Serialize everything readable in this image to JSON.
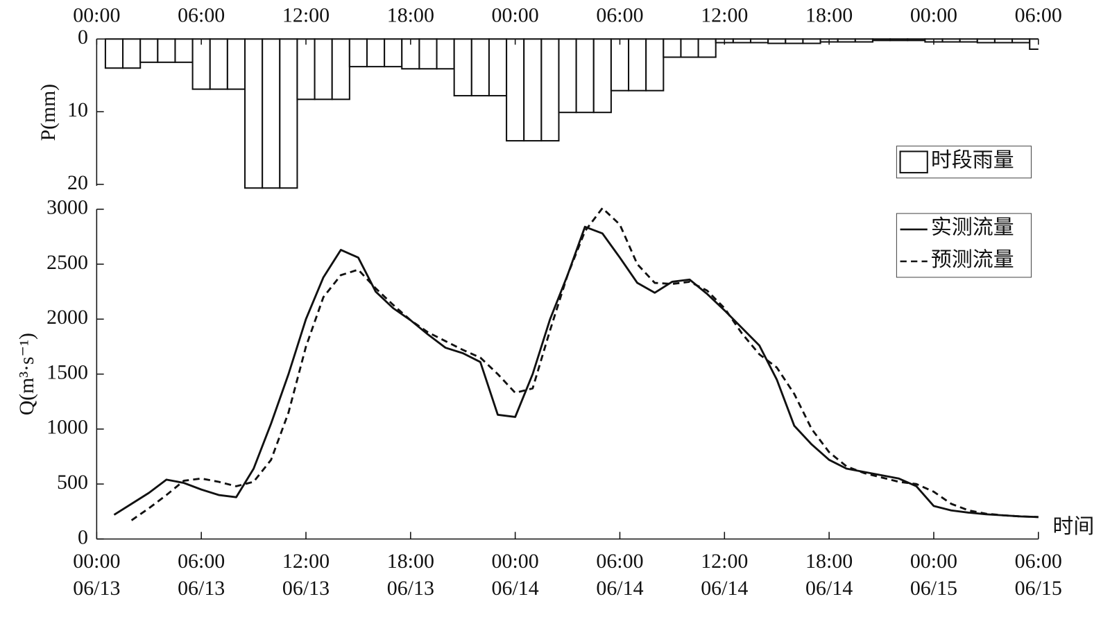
{
  "chart_data": [
    {
      "type": "bar",
      "ylabel": "P(mm)",
      "x": [
        1,
        2,
        3,
        4,
        5,
        6,
        7,
        8,
        9,
        10,
        11,
        12,
        13,
        14,
        15,
        16,
        17,
        18,
        19,
        20,
        21,
        22,
        23,
        24,
        25,
        26,
        27,
        28,
        29,
        30,
        31,
        32,
        33,
        34,
        35,
        36,
        37,
        38,
        39,
        40,
        41,
        42,
        43,
        44,
        45,
        46,
        47,
        48,
        49,
        50,
        51,
        52,
        53,
        54
      ],
      "series": [
        {
          "name": "时段雨量",
          "color": "#ffffff",
          "values": [
            4,
            4,
            3.2,
            3.2,
            3.2,
            6.9,
            6.9,
            6.9,
            20.5,
            20.5,
            20.5,
            8.3,
            8.3,
            8.3,
            3.8,
            3.8,
            3.8,
            4.1,
            4.1,
            4.1,
            7.8,
            7.8,
            7.8,
            14,
            14,
            14,
            10.1,
            10.1,
            10.1,
            7.1,
            7.1,
            7.1,
            2.5,
            2.5,
            2.5,
            0.5,
            0.5,
            0.5,
            0.6,
            0.6,
            0.6,
            0.4,
            0.4,
            0.4,
            0.2,
            0.2,
            0.2,
            0.4,
            0.4,
            0.4,
            0.5,
            0.5,
            0.5,
            1.4
          ]
        }
      ],
      "xlim": [
        0,
        54
      ],
      "xticks": [
        {
          "value": 0,
          "label": "00:00"
        },
        {
          "value": 6,
          "label": "06:00"
        },
        {
          "value": 12,
          "label": "12:00"
        },
        {
          "value": 18,
          "label": "18:00"
        },
        {
          "value": 24,
          "label": "00:00"
        },
        {
          "value": 30,
          "label": "06:00"
        },
        {
          "value": 36,
          "label": "12:00"
        },
        {
          "value": 42,
          "label": "18:00"
        },
        {
          "value": 48,
          "label": "00:00"
        },
        {
          "value": 54,
          "label": "06:00"
        }
      ],
      "ylim": [
        0,
        20
      ],
      "yticks": [
        0,
        10,
        20
      ],
      "y_inverted": true,
      "legend": "northeast"
    },
    {
      "type": "line",
      "ylabel": "Q(m³·s⁻¹)",
      "xlabel": "时间",
      "x": [
        1,
        2,
        3,
        4,
        5,
        6,
        7,
        8,
        9,
        10,
        11,
        12,
        13,
        14,
        15,
        16,
        17,
        18,
        19,
        20,
        21,
        22,
        23,
        24,
        25,
        26,
        27,
        28,
        29,
        30,
        31,
        32,
        33,
        34,
        35,
        36,
        37,
        38,
        39,
        40,
        41,
        42,
        43,
        44,
        45,
        46,
        47,
        48,
        49,
        50,
        51,
        52,
        53,
        54
      ],
      "series": [
        {
          "name": "实测流量",
          "color": "#111111",
          "dash": "solid",
          "values": [
            220,
            320,
            420,
            540,
            510,
            450,
            400,
            380,
            640,
            1050,
            1500,
            2000,
            2380,
            2630,
            2560,
            2250,
            2100,
            1990,
            1860,
            1740,
            1690,
            1610,
            1130,
            1110,
            1500,
            2000,
            2400,
            2840,
            2780,
            2560,
            2330,
            2240,
            2340,
            2360,
            2230,
            2080,
            1920,
            1760,
            1450,
            1030,
            860,
            720,
            640,
            610,
            580,
            550,
            480,
            300,
            260,
            240,
            225,
            215,
            205,
            200
          ]
        },
        {
          "name": "预测流量",
          "color": "#111111",
          "dash": "dashed",
          "values": [
            null,
            170,
            280,
            400,
            530,
            550,
            520,
            480,
            520,
            720,
            1150,
            1750,
            2200,
            2400,
            2450,
            2280,
            2130,
            1990,
            1880,
            1800,
            1720,
            1650,
            1500,
            1330,
            1370,
            1900,
            2400,
            2800,
            3010,
            2860,
            2500,
            2330,
            2320,
            2340,
            2260,
            2100,
            1870,
            1680,
            1560,
            1320,
            1000,
            790,
            660,
            600,
            560,
            520,
            500,
            430,
            320,
            260,
            230,
            215,
            205,
            200
          ]
        }
      ],
      "xlim": [
        0,
        54
      ],
      "xticks": [
        {
          "value": 0,
          "label": [
            "00:00",
            "06/13"
          ]
        },
        {
          "value": 6,
          "label": [
            "06:00",
            "06/13"
          ]
        },
        {
          "value": 12,
          "label": [
            "12:00",
            "06/13"
          ]
        },
        {
          "value": 18,
          "label": [
            "18:00",
            "06/13"
          ]
        },
        {
          "value": 24,
          "label": [
            "00:00",
            "06/14"
          ]
        },
        {
          "value": 30,
          "label": [
            "06:00",
            "06/14"
          ]
        },
        {
          "value": 36,
          "label": [
            "12:00",
            "06/14"
          ]
        },
        {
          "value": 42,
          "label": [
            "18:00",
            "06/14"
          ]
        },
        {
          "value": 48,
          "label": [
            "00:00",
            "06/15"
          ]
        },
        {
          "value": 54,
          "label": [
            "06:00",
            "06/15"
          ]
        }
      ],
      "ylim": [
        0,
        3000
      ],
      "yticks": [
        0,
        500,
        1000,
        1500,
        2000,
        2500,
        3000
      ],
      "legend": "northeast"
    }
  ]
}
